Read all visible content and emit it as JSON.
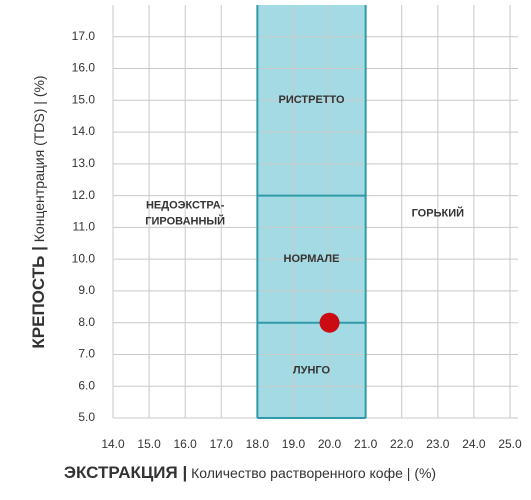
{
  "chart_data": {
    "type": "scatter",
    "xlabel_main": "ЭКСТРАКЦИЯ |",
    "xlabel_detail": "Количество растворенного кофе | (%)",
    "ylabel_main": "КРЕПОСТЬ |",
    "ylabel_detail": "Концентрация (TDS) | (%)",
    "xlim": [
      14,
      25
    ],
    "ylim": [
      5,
      18
    ],
    "xticks": [
      {
        "value": 14,
        "label": "14.0"
      },
      {
        "value": 15,
        "label": "15.0"
      },
      {
        "value": 16,
        "label": "16.0"
      },
      {
        "value": 17,
        "label": "17.0"
      },
      {
        "value": 18,
        "label": "18.0"
      },
      {
        "value": 19,
        "label": "19.0"
      },
      {
        "value": 20,
        "label": "20.0"
      },
      {
        "value": 21,
        "label": "21.0"
      },
      {
        "value": 22,
        "label": "22.0"
      },
      {
        "value": 23,
        "label": "23.0"
      },
      {
        "value": 24,
        "label": "24.0"
      },
      {
        "value": 25,
        "label": "25.0"
      }
    ],
    "yticks": [
      {
        "value": 5,
        "label": "5.0"
      },
      {
        "value": 6,
        "label": "6.0"
      },
      {
        "value": 7,
        "label": "7.0"
      },
      {
        "value": 8,
        "label": "8.0"
      },
      {
        "value": 9,
        "label": "9.0"
      },
      {
        "value": 10,
        "label": "10.0"
      },
      {
        "value": 11,
        "label": "11.0"
      },
      {
        "value": 12,
        "label": "12.0"
      },
      {
        "value": 13,
        "label": "13.0"
      },
      {
        "value": 14,
        "label": "14.0"
      },
      {
        "value": 15,
        "label": "15.0"
      },
      {
        "value": 16,
        "label": "16.0"
      },
      {
        "value": 17,
        "label": "17.0"
      }
    ],
    "grid": true,
    "band": {
      "x": [
        18,
        21
      ],
      "dividers": [
        8,
        12
      ],
      "color": "#86cedb",
      "edge_color": "#2f9aa9"
    },
    "zone_labels": {
      "top": "РИСТРЕТТО",
      "middle": "НОРМАЛЕ",
      "bottom": "ЛУНГО",
      "left": [
        "НЕДОЭКСТРА-",
        "ГИРОВАННЫЙ"
      ],
      "right": "ГОРЬКИЙ"
    },
    "x": [
      20
    ],
    "values": [
      8
    ],
    "color": "#cc0a14"
  }
}
